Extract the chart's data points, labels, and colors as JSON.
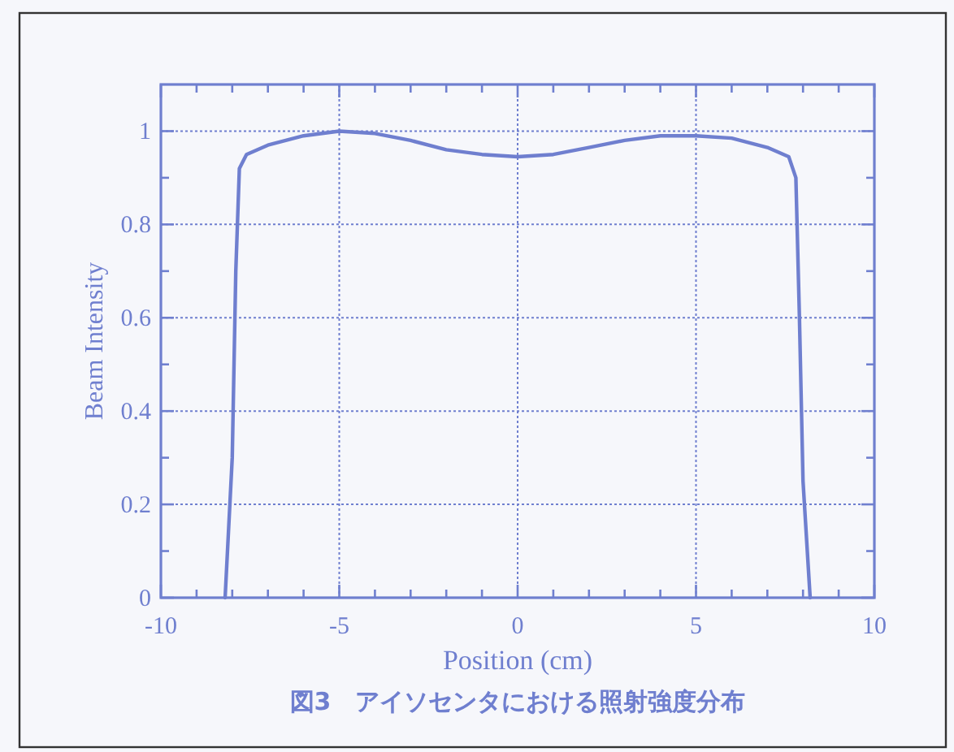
{
  "chart_data": {
    "type": "line",
    "xlabel": "Position (cm)",
    "ylabel": "Beam Intensity",
    "annotations": [
      "図3　アイソセンタにおける照射強度分布"
    ],
    "x": [
      -8.2,
      -8.0,
      -7.9,
      -7.8,
      -7.6,
      -7.0,
      -6.0,
      -5.0,
      -4.0,
      -3.0,
      -2.0,
      -1.0,
      0.0,
      1.0,
      2.0,
      3.0,
      4.0,
      5.0,
      6.0,
      6.5,
      7.0,
      7.6,
      7.8,
      7.9,
      8.0,
      8.2
    ],
    "series": [
      {
        "color": "#6f7fcf",
        "values": [
          0,
          0.3,
          0.7,
          0.92,
          0.95,
          0.97,
          0.99,
          1.0,
          0.995,
          0.98,
          0.96,
          0.95,
          0.945,
          0.95,
          0.965,
          0.98,
          0.99,
          0.99,
          0.985,
          0.975,
          0.965,
          0.945,
          0.9,
          0.6,
          0.25,
          0
        ]
      }
    ],
    "xlim": [
      -10,
      10
    ],
    "ylim": [
      0,
      1.1
    ],
    "xticks": [
      -10,
      {
        "value": -9,
        "label": null
      },
      {
        "value": -8,
        "label": null
      },
      {
        "value": -7,
        "label": null
      },
      {
        "value": -6,
        "label": null
      },
      -5,
      {
        "value": -4,
        "label": null
      },
      {
        "value": -3,
        "label": null
      },
      {
        "value": -2,
        "label": null
      },
      {
        "value": -1,
        "label": null
      },
      0,
      {
        "value": 1,
        "label": null
      },
      {
        "value": 2,
        "label": null
      },
      {
        "value": 3,
        "label": null
      },
      {
        "value": 4,
        "label": null
      },
      5,
      {
        "value": 6,
        "label": null
      },
      {
        "value": 7,
        "label": null
      },
      {
        "value": 8,
        "label": null
      },
      {
        "value": 9,
        "label": null
      },
      10
    ],
    "yticks": [
      0,
      {
        "value": 0.1,
        "label": null
      },
      {
        "value": 0.2,
        "label": "0.2"
      },
      {
        "value": 0.3,
        "label": null
      },
      {
        "value": 0.4,
        "label": "0.4"
      },
      {
        "value": 0.5,
        "label": null
      },
      {
        "value": 0.6,
        "label": "0.6"
      },
      {
        "value": 0.7,
        "label": null
      },
      {
        "value": 0.8,
        "label": "0.8"
      },
      {
        "value": 0.9,
        "label": null
      },
      1
    ],
    "grid": true,
    "line_style": "solid",
    "marker": "none"
  }
}
